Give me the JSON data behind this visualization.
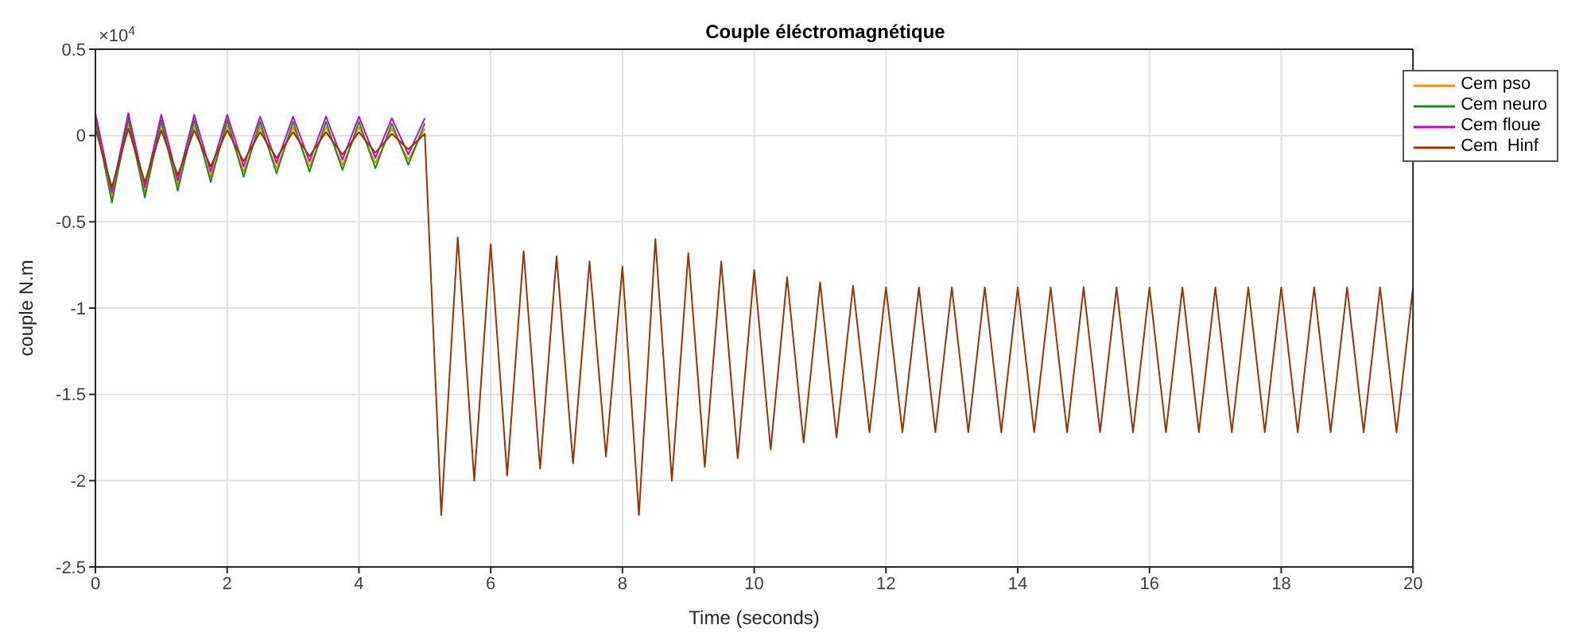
{
  "chart_data": {
    "type": "line",
    "title": "Couple éléctromagnétique",
    "xlabel": "Time (seconds)",
    "ylabel": "couple    N.m",
    "annotations": [
      "×10$^{4}$"
    ],
    "xlim": [
      0,
      20
    ],
    "xticks": [
      0,
      2,
      4,
      6,
      8,
      10,
      12,
      14,
      16,
      18,
      20
    ],
    "ylim": [
      -2.5,
      0.5
    ],
    "yticks": [
      -2.5,
      -2,
      -1.5,
      -1,
      -0.5,
      0,
      0.5
    ],
    "grid": true,
    "legend": "top right",
    "marker": "none",
    "line_style": "solid",
    "series": [
      {
        "name": "Cem pso",
        "color": "#e69500",
        "x": [
          0,
          0.25,
          0.5,
          0.75,
          1,
          1.25,
          1.5,
          1.75,
          2,
          2.25,
          2.5,
          2.75,
          3,
          3.25,
          3.5,
          3.75,
          4,
          4.25,
          4.5,
          4.75,
          5
        ],
        "values": [
          0.07,
          -0.36,
          0.07,
          -0.33,
          0.06,
          -0.29,
          0.06,
          -0.24,
          0.06,
          -0.21,
          0.05,
          -0.19,
          0.05,
          -0.18,
          0.05,
          -0.17,
          0.05,
          -0.16,
          0.04,
          -0.14,
          0.04
        ]
      },
      {
        "name": "Cem neuro",
        "color": "#1a8a1a",
        "x": [
          0,
          0.25,
          0.5,
          0.75,
          1,
          1.25,
          1.5,
          1.75,
          2,
          2.25,
          2.5,
          2.75,
          3,
          3.25,
          3.5,
          3.75,
          4,
          4.25,
          4.5,
          4.75,
          5
        ],
        "values": [
          0.1,
          -0.39,
          0.1,
          -0.36,
          0.09,
          -0.32,
          0.09,
          -0.27,
          0.09,
          -0.24,
          0.08,
          -0.22,
          0.08,
          -0.21,
          0.08,
          -0.2,
          0.08,
          -0.19,
          0.07,
          -0.17,
          0.07
        ]
      },
      {
        "name": "Cem floue",
        "color": "#cc00cc",
        "x": [
          0,
          0.25,
          0.5,
          0.75,
          1,
          1.25,
          1.5,
          1.75,
          2,
          2.25,
          2.5,
          2.75,
          3,
          3.25,
          3.5,
          3.75,
          4,
          4.25,
          4.5,
          4.75,
          5
        ],
        "values": [
          0.13,
          -0.33,
          0.13,
          -0.3,
          0.12,
          -0.26,
          0.12,
          -0.21,
          0.12,
          -0.18,
          0.11,
          -0.16,
          0.11,
          -0.15,
          0.11,
          -0.14,
          0.11,
          -0.13,
          0.1,
          -0.11,
          0.1
        ]
      },
      {
        "name": "Cem  Hinf",
        "color": "#993300",
        "x": [
          0,
          0.25,
          0.5,
          0.75,
          1,
          1.25,
          1.5,
          1.75,
          2,
          2.25,
          2.5,
          2.75,
          3,
          3.25,
          3.5,
          3.75,
          4,
          4.25,
          4.5,
          4.75,
          5,
          5.25,
          5.5,
          5.75,
          6,
          6.25,
          6.5,
          6.75,
          7,
          7.25,
          7.5,
          7.75,
          8,
          8.25,
          8.5,
          8.75,
          9,
          9.25,
          9.5,
          9.75,
          10,
          10.25,
          10.5,
          10.75,
          11,
          11.25,
          11.5,
          11.75,
          12,
          12.25,
          12.5,
          12.75,
          13,
          13.25,
          13.5,
          13.75,
          14,
          14.25,
          14.5,
          14.75,
          15,
          15.25,
          15.5,
          15.75,
          16,
          16.25,
          16.5,
          16.75,
          17,
          17.25,
          17.5,
          17.75,
          18,
          18.25,
          18.5,
          18.75,
          19,
          19.25,
          19.5,
          19.75,
          20
        ],
        "values": [
          0.04,
          -0.3,
          0.04,
          -0.27,
          0.03,
          -0.23,
          0.03,
          -0.18,
          0.03,
          -0.15,
          0.02,
          -0.13,
          0.02,
          -0.12,
          0.02,
          -0.11,
          0.02,
          -0.1,
          0.01,
          -0.08,
          0.01,
          -2.2,
          -0.59,
          -2.0,
          -0.63,
          -1.97,
          -0.67,
          -1.93,
          -0.7,
          -1.9,
          -0.73,
          -1.86,
          -0.76,
          -2.2,
          -0.6,
          -2.0,
          -0.68,
          -1.92,
          -0.73,
          -1.87,
          -0.78,
          -1.82,
          -0.82,
          -1.78,
          -0.85,
          -1.75,
          -0.87,
          -1.72,
          -0.88,
          -1.72,
          -0.88,
          -1.72,
          -0.88,
          -1.72,
          -0.88,
          -1.72,
          -0.88,
          -1.72,
          -0.88,
          -1.72,
          -0.88,
          -1.72,
          -0.88,
          -1.72,
          -0.88,
          -1.72,
          -0.88,
          -1.72,
          -0.88,
          -1.72,
          -0.88,
          -1.72,
          -0.88,
          -1.72,
          -0.88,
          -1.72,
          -0.88,
          -1.72,
          -0.88,
          -1.72,
          -0.88
        ]
      }
    ]
  }
}
